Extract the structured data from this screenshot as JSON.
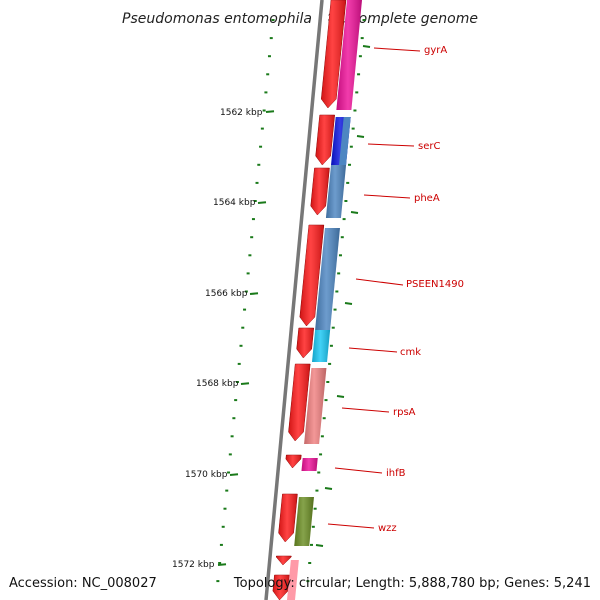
{
  "title": "Pseudomonas entomophila L48, complete genome",
  "footer": {
    "accession": "Accession: NC_008027",
    "topology": "Topology: circular; Length: 5,888,780 bp; Genes: 5,241"
  },
  "colors": {
    "backbone": "#777777",
    "tick": "#1a7a1a",
    "label": "#cc0000",
    "cds": "#ff1a1a"
  },
  "ticks": [
    {
      "label": "1562 kbp"
    },
    {
      "label": "1564 kbp"
    },
    {
      "label": "1566 kbp"
    },
    {
      "label": "1568 kbp"
    },
    {
      "label": "1570 kbp"
    },
    {
      "label": "1572 kbp"
    }
  ],
  "genes": [
    {
      "name": "gyrA",
      "color": "#ee1199"
    },
    {
      "name": "serC",
      "color": "#0a14e0"
    },
    {
      "name": "pheA",
      "color": "#4d86c2"
    },
    {
      "name": "PSEEN1490",
      "color": "#4d86c2"
    },
    {
      "name": "cmk",
      "color": "#19c8f5"
    },
    {
      "name": "rpsA",
      "color": "#f08080"
    },
    {
      "name": "ihfB",
      "color": "#ee1199"
    },
    {
      "name": "wzz",
      "color": "#6b8e23"
    }
  ]
}
